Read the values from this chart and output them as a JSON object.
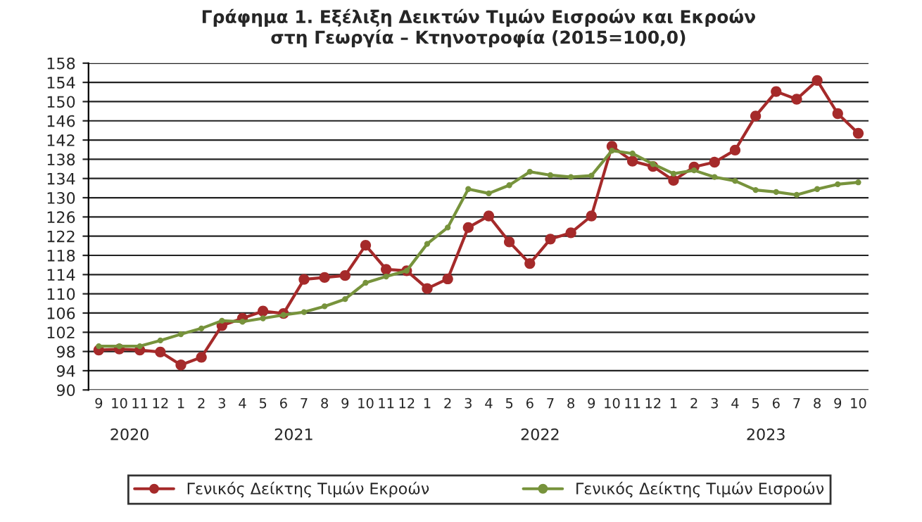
{
  "chart_data": {
    "type": "line",
    "title": "Γράφημα 1. Εξέλιξη Δεικτών Τιμών Εισροών και Εκροών\nστη Γεωργία – Κτηνοτροφία (2015=100,0)",
    "categories": [
      "9",
      "10",
      "11",
      "12",
      "1",
      "2",
      "3",
      "4",
      "5",
      "6",
      "7",
      "8",
      "9",
      "10",
      "11",
      "12",
      "1",
      "2",
      "3",
      "4",
      "5",
      "6",
      "7",
      "8",
      "9",
      "10",
      "11",
      "12",
      "1",
      "2",
      "3",
      "4",
      "5",
      "6",
      "7",
      "8",
      "9",
      "10"
    ],
    "annotations": [
      "2020",
      "2021",
      "2022",
      "2023"
    ],
    "series": [
      {
        "name": "Γενικός Δείκτης Τιμών Εκροών",
        "color": "#a52a2a",
        "values": [
          98.3,
          98.5,
          98.3,
          97.9,
          95.2,
          96.8,
          103.4,
          104.9,
          106.4,
          105.9,
          113.0,
          113.4,
          113.8,
          120.1,
          115.1,
          114.8,
          111.1,
          113.1,
          123.8,
          126.2,
          120.8,
          116.3,
          121.4,
          122.7,
          126.2,
          140.7,
          137.6,
          136.5,
          133.6,
          136.4,
          137.4,
          139.9,
          147.0,
          152.1,
          150.5,
          154.4,
          147.5,
          143.4
        ]
      },
      {
        "name": "Γενικός Δείκτης Τιμών Εισροών",
        "color": "#77933c",
        "values": [
          99.1,
          99.1,
          99.1,
          100.3,
          101.6,
          102.8,
          104.4,
          104.2,
          104.9,
          105.6,
          106.2,
          107.4,
          108.9,
          112.3,
          113.6,
          114.8,
          120.4,
          123.8,
          131.8,
          130.9,
          132.6,
          135.4,
          134.7,
          134.3,
          134.6,
          139.8,
          139.2,
          137.0,
          135.0,
          135.7,
          134.3,
          133.5,
          131.6,
          131.2,
          130.6,
          131.8,
          132.8,
          133.2
        ]
      }
    ],
    "ylim": [
      90,
      158
    ],
    "yticks": [
      90,
      94,
      98,
      102,
      106,
      110,
      114,
      118,
      122,
      126,
      130,
      134,
      138,
      142,
      146,
      150,
      154,
      158
    ],
    "grid": "y",
    "legend": "bottom",
    "marker": "circle",
    "line_style": "solid"
  }
}
